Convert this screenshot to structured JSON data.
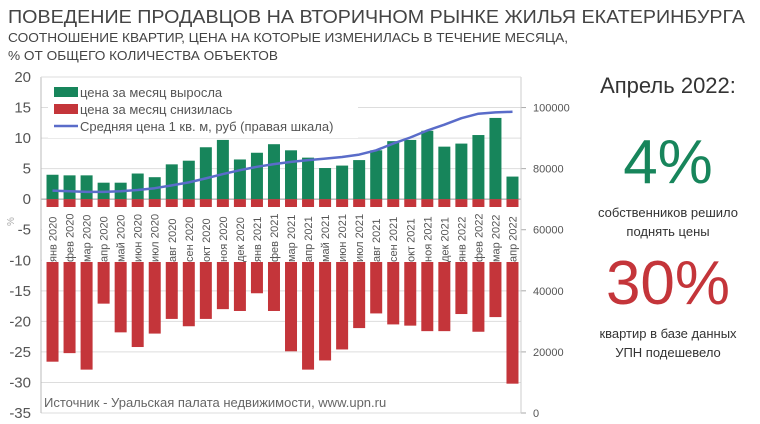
{
  "header": {
    "title": "ПОВЕДЕНИЕ ПРОДАВЦОВ НА ВТОРИЧНОМ РЫНКЕ ЖИЛЬЯ ЕКАТЕРИНБУРГА",
    "subtitle_line1": "СООТНОШЕНИЕ КВАРТИР, ЦЕНА НА КОТОРЫЕ ИЗМЕНИЛАСЬ В ТЕЧЕНИЕ МЕСЯЦА,",
    "subtitle_line2": "% ОТ ОБЩЕГО КОЛИЧЕСТВА ОБЪЕКТОВ"
  },
  "summary": {
    "period": "Апрель 2022:",
    "up_value": "4%",
    "up_text_1": "собственников решило",
    "up_text_2": "поднять цены",
    "down_value": "30%",
    "down_text_1": "квартир в базе данных",
    "down_text_2": "УПН подешевело"
  },
  "colors": {
    "up": "#17855b",
    "down": "#c4353a",
    "line": "#5a6cc9",
    "text": "#444444"
  },
  "chart_data": {
    "type": "bar",
    "title": "",
    "ylabel": "%",
    "source": "Источник - Уральская палата недвижимости, www.upn.ru",
    "ylim": [
      -35,
      20
    ],
    "y_ticks": [
      20,
      15,
      10,
      5,
      0,
      -5,
      -10,
      -15,
      -20,
      -25,
      -30,
      -35
    ],
    "y2lim": [
      0,
      110000
    ],
    "y2_ticks": [
      100000,
      80000,
      60000,
      40000,
      20000,
      0
    ],
    "legend_position": "top-left",
    "grid": true,
    "categories": [
      "янв 2020",
      "фев 2020",
      "мар 2020",
      "апр 2020",
      "май 2020",
      "июн 2020",
      "июл 2020",
      "авг 2020",
      "сен 2020",
      "окт 2020",
      "ноя 2020",
      "дек 2020",
      "янв 2021",
      "фев 2021",
      "мар 2021",
      "апр 2021",
      "май 2021",
      "июн 2021",
      "июл 2021",
      "авг 2021",
      "сен 2021",
      "окт 2021",
      "ноя 2021",
      "дек 2021",
      "янв 2022",
      "фев 2022",
      "мар 2022",
      "апр 2022"
    ],
    "series": [
      {
        "name": "цена за месяц выросла",
        "type": "bar",
        "axis": "left",
        "values": [
          4.0,
          3.9,
          3.9,
          2.7,
          2.7,
          4.2,
          3.6,
          5.7,
          6.3,
          8.5,
          9.7,
          6.5,
          7.6,
          9.0,
          8.0,
          6.8,
          5.1,
          5.5,
          6.4,
          8.0,
          9.5,
          9.7,
          11.2,
          8.6,
          9.1,
          10.5,
          13.3,
          3.7
        ]
      },
      {
        "name": "цена за месяц снизилась",
        "type": "bar",
        "axis": "left",
        "values": [
          -26.6,
          -25.2,
          -27.9,
          -17.1,
          -21.8,
          -24.2,
          -22.0,
          -19.6,
          -20.8,
          -19.6,
          -18.0,
          -18.3,
          -15.4,
          -18.3,
          -24.9,
          -27.9,
          -26.4,
          -24.6,
          -21.1,
          -18.7,
          -20.5,
          -20.7,
          -21.6,
          -21.6,
          -18.8,
          -21.7,
          -19.3,
          -30.2
        ]
      },
      {
        "name": "Средняя цена 1 кв. м, руб (правая шкала)",
        "type": "line",
        "axis": "right",
        "values": [
          72800,
          72600,
          72400,
          72400,
          72600,
          73000,
          73600,
          74500,
          75500,
          76800,
          78200,
          79500,
          80600,
          81500,
          82200,
          82800,
          83300,
          83800,
          84600,
          86000,
          88200,
          90200,
          92500,
          94400,
          96500,
          98000,
          98400,
          98600
        ]
      }
    ]
  }
}
